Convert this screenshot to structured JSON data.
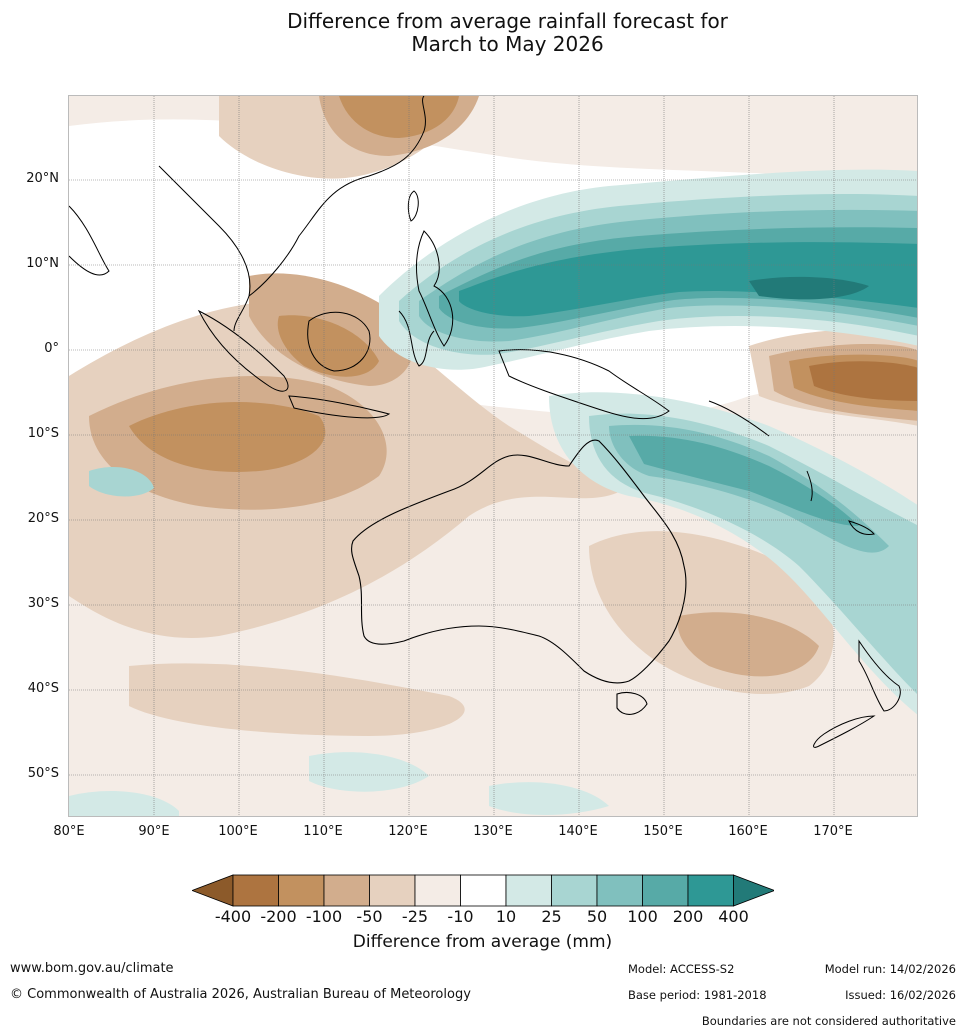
{
  "title": {
    "line1": "Difference from average rainfall forecast for",
    "line2": "March to May 2026"
  },
  "map": {
    "latitude_labels": [
      "20°N",
      "10°N",
      "0°",
      "10°S",
      "20°S",
      "30°S",
      "40°S",
      "50°S"
    ],
    "longitude_labels": [
      "80°E",
      "90°E",
      "100°E",
      "110°E",
      "120°E",
      "130°E",
      "140°E",
      "150°E",
      "160°E",
      "170°E"
    ]
  },
  "legend": {
    "tick_labels": [
      "-400",
      "-200",
      "-100",
      "-50",
      "-25",
      "-10",
      "10",
      "25",
      "50",
      "100",
      "200",
      "400"
    ],
    "colors": [
      "#8c5a2a",
      "#ad7440",
      "#c2915f",
      "#d2ad8d",
      "#e6d1bf",
      "#f4ece6",
      "#ffffff",
      "#d3e9e6",
      "#a8d5d2",
      "#80c0be",
      "#57aaa7",
      "#2e9895",
      "#227a78"
    ],
    "title": "Difference from average (mm)"
  },
  "footer": {
    "website": "www.bom.gov.au/climate",
    "copyright": "© Commonwealth of Australia 2026, Australian Bureau of Meteorology",
    "model": "Model: ACCESS-S2",
    "base_period": "Base period: 1981-2018",
    "model_run": "Model run: 14/02/2026",
    "issued": "Issued: 16/02/2026",
    "disclaimer": "Boundaries are not considered authoritative"
  }
}
